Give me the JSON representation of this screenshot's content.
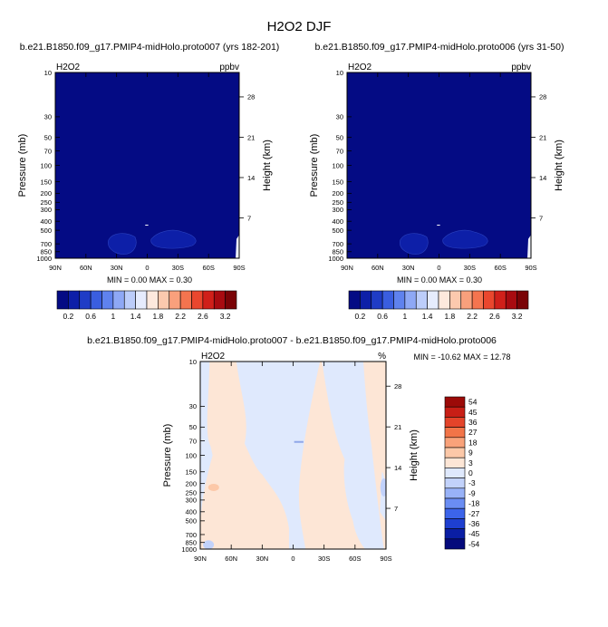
{
  "title": "H2O2 DJF",
  "colors": {
    "seq": [
      "#040b84",
      "#0d1fa8",
      "#1f3cc6",
      "#3a5ee0",
      "#5f82ee",
      "#8ea8f5",
      "#bccdfa",
      "#e6ecfd",
      "#fde9dd",
      "#fcc9ae",
      "#f9a07c",
      "#f4744f",
      "#ea472e",
      "#d0201a",
      "#a80b10",
      "#7a0306"
    ],
    "div": [
      "#050a7c",
      "#0a1ea4",
      "#1e3fd0",
      "#3c64ea",
      "#6a8df3",
      "#98b2f8",
      "#c2d2fb",
      "#dfe9fd",
      "#fde6d6",
      "#fcc8a8",
      "#f9a27a",
      "#f27448",
      "#e4442a",
      "#c81f16",
      "#9c0a08"
    ]
  },
  "panels": [
    {
      "subtitle": "b.e21.B1850.f09_g17.PMIP4-midHolo.proto007 (yrs 182-201)",
      "left_label": "H2O2",
      "right_label": "ppbv",
      "stats": "MIN =   0.00  MAX =   0.30"
    },
    {
      "subtitle": "b.e21.B1850.f09_g17.PMIP4-midHolo.proto006 (yrs 31-50)",
      "left_label": "H2O2",
      "right_label": "ppbv",
      "stats": "MIN =   0.00  MAX =   0.30"
    },
    {
      "subtitle": "b.e21.B1850.f09_g17.PMIP4-midHolo.proto007 - b.e21.B1850.f09_g17.PMIP4-midHolo.proto006",
      "left_label": "H2O2",
      "right_label": "%",
      "stats": "MIN = -10.62  MAX =  12.78"
    }
  ],
  "chart_data": [
    {
      "type": "heatmap",
      "xlabel": "",
      "ylabel": "Pressure (mb)",
      "y2label": "Height (km)",
      "x_ticks": [
        "90N",
        "60N",
        "30N",
        "0",
        "30S",
        "60S",
        "90S"
      ],
      "x_values": [
        90,
        60,
        30,
        0,
        -30,
        -60,
        -90
      ],
      "y_ticks": [
        10,
        30,
        50,
        70,
        100,
        150,
        200,
        250,
        300,
        400,
        500,
        700,
        850,
        1000
      ],
      "y_scale": "log",
      "ylim": [
        10,
        1000
      ],
      "y2_ticks": [
        7,
        14,
        21,
        28
      ],
      "grid": false,
      "colorbar_labels": [
        "0.2",
        "0.6",
        "1",
        "1.4",
        "1.8",
        "2.2",
        "2.6",
        "3.2"
      ],
      "colorbar_placement": "bottom",
      "min": 0.0,
      "max": 0.3
    },
    {
      "type": "heatmap",
      "xlabel": "",
      "ylabel": "Pressure (mb)",
      "y2label": "Height (km)",
      "x_ticks": [
        "90N",
        "60N",
        "30N",
        "0",
        "30S",
        "60S",
        "90S"
      ],
      "x_values": [
        90,
        60,
        30,
        0,
        -30,
        -60,
        -90
      ],
      "y_ticks": [
        10,
        30,
        50,
        70,
        100,
        150,
        200,
        250,
        300,
        400,
        500,
        700,
        850,
        1000
      ],
      "y_scale": "log",
      "ylim": [
        10,
        1000
      ],
      "y2_ticks": [
        7,
        14,
        21,
        28
      ],
      "grid": false,
      "colorbar_labels": [
        "0.2",
        "0.6",
        "1",
        "1.4",
        "1.8",
        "2.2",
        "2.6",
        "3.2"
      ],
      "colorbar_placement": "bottom",
      "min": 0.0,
      "max": 0.3
    },
    {
      "type": "heatmap",
      "xlabel": "",
      "ylabel": "Pressure (mb)",
      "y2label": "Height (km)",
      "x_ticks": [
        "90N",
        "60N",
        "30N",
        "0",
        "30S",
        "60S",
        "90S"
      ],
      "x_values": [
        90,
        60,
        30,
        0,
        -30,
        -60,
        -90
      ],
      "y_ticks": [
        10,
        30,
        50,
        70,
        100,
        150,
        200,
        250,
        300,
        400,
        500,
        700,
        850,
        1000
      ],
      "y_scale": "log",
      "ylim": [
        10,
        1000
      ],
      "y2_ticks": [
        7,
        14,
        21,
        28
      ],
      "grid": false,
      "colorbar_labels": [
        "54",
        "45",
        "36",
        "27",
        "18",
        "9",
        "3",
        "0",
        "-3",
        "-9",
        "-18",
        "-27",
        "-36",
        "-45",
        "-54"
      ],
      "colorbar_placement": "right",
      "min": -10.62,
      "max": 12.78
    }
  ]
}
